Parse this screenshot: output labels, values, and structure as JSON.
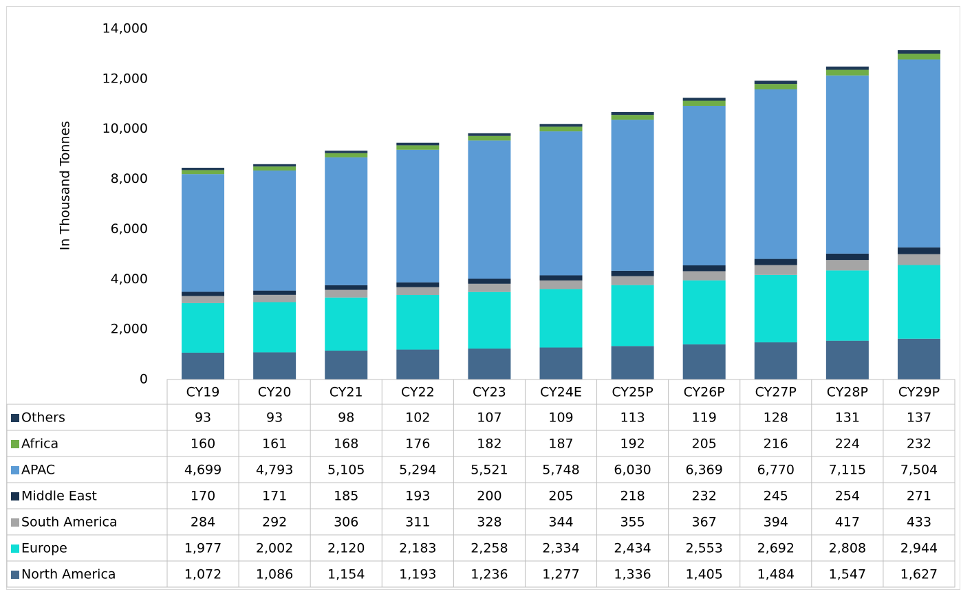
{
  "chart_data": {
    "type": "stacked_bar",
    "y_label": "In Thousand Tonnes",
    "categories": [
      "CY19",
      "CY20",
      "CY21",
      "CY22",
      "CY23",
      "CY24E",
      "CY25P",
      "CY26P",
      "CY27P",
      "CY28P",
      "CY29P"
    ],
    "ylim": [
      0,
      14000
    ],
    "yticks": [
      0,
      {
        "value": 2000,
        "label": "2,000"
      },
      {
        "value": 4000,
        "label": "4,000"
      },
      {
        "value": 6000,
        "label": "6,000"
      },
      {
        "value": 8000,
        "label": "8,000"
      },
      {
        "value": 10000,
        "label": "10,000"
      },
      {
        "value": 12000,
        "label": "12,000"
      },
      {
        "value": 14000,
        "label": "14,000"
      }
    ],
    "series": [
      {
        "name": "North America",
        "color": "#44698d",
        "values": [
          1072,
          1086,
          1154,
          1193,
          1236,
          1277,
          1336,
          1405,
          1484,
          1547,
          1627
        ],
        "value_labels": [
          "1,072",
          "1,086",
          "1,154",
          "1,193",
          "1,236",
          "1,277",
          "1,336",
          "1,405",
          "1,484",
          "1,547",
          "1,627"
        ]
      },
      {
        "name": "Europe",
        "color": "#10ddd5",
        "values": [
          1977,
          2002,
          2120,
          2183,
          2258,
          2334,
          2434,
          2553,
          2692,
          2808,
          2944
        ],
        "value_labels": [
          "1,977",
          "2,002",
          "2,120",
          "2,183",
          "2,258",
          "2,334",
          "2,434",
          "2,553",
          "2,692",
          "2,808",
          "2,944"
        ]
      },
      {
        "name": "South America",
        "color": "#a5a5a5",
        "values": [
          284,
          292,
          306,
          311,
          328,
          344,
          355,
          367,
          394,
          417,
          433
        ]
      },
      {
        "name": "Middle East",
        "color": "#17304d",
        "values": [
          170,
          171,
          185,
          193,
          200,
          205,
          218,
          232,
          245,
          254,
          271
        ]
      },
      {
        "name": "APAC",
        "color": "#5b9bd5",
        "values": [
          4699,
          4793,
          5105,
          5294,
          5521,
          5748,
          6030,
          6369,
          6770,
          7115,
          7504
        ],
        "value_labels": [
          "4,699",
          "4,793",
          "5,105",
          "5,294",
          "5,521",
          "5,748",
          "6,030",
          "6,369",
          "6,770",
          "7,115",
          "7,504"
        ]
      },
      {
        "name": "Africa",
        "color": "#70ad47",
        "values": [
          160,
          161,
          168,
          176,
          182,
          187,
          192,
          205,
          216,
          224,
          232
        ]
      },
      {
        "name": "Others",
        "color": "#1f3a57",
        "values": [
          93,
          93,
          98,
          102,
          107,
          109,
          113,
          119,
          128,
          131,
          137
        ]
      }
    ]
  }
}
